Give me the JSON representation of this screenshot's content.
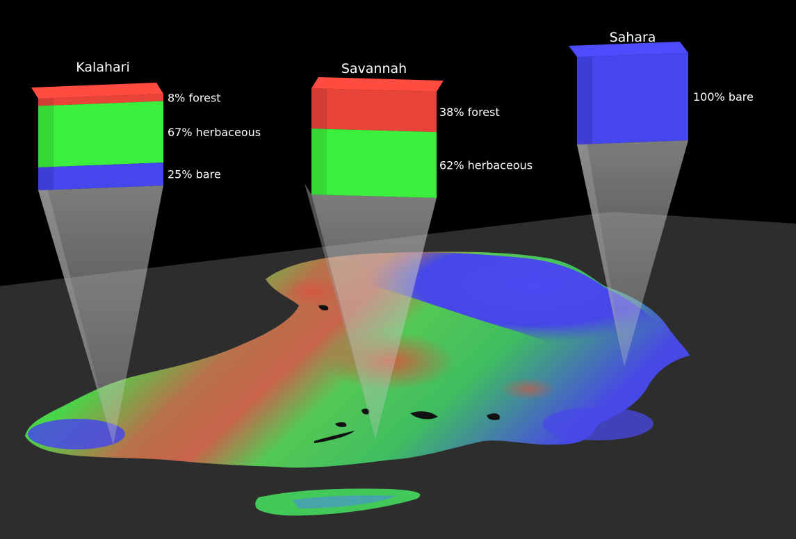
{
  "colors": {
    "background": "#000000",
    "map_plane": "#2e2e2e",
    "forest": "#e8443a",
    "herbaceous": "#3cef3c",
    "bare": "#4646ee",
    "beam": "#bdbdbd"
  },
  "sites": [
    {
      "name": "Kalahari",
      "shares": [
        {
          "cover": "forest",
          "percent": 8,
          "label": "8% forest"
        },
        {
          "cover": "herbaceous",
          "percent": 67,
          "label": "67% herbaceous"
        },
        {
          "cover": "bare",
          "percent": 25,
          "label": "25% bare"
        }
      ]
    },
    {
      "name": "Savannah",
      "shares": [
        {
          "cover": "forest",
          "percent": 38,
          "label": "38% forest"
        },
        {
          "cover": "herbaceous",
          "percent": 62,
          "label": "62% herbaceous"
        }
      ]
    },
    {
      "name": "Sahara",
      "shares": [
        {
          "cover": "bare",
          "percent": 100,
          "label": "100% bare"
        }
      ]
    }
  ]
}
